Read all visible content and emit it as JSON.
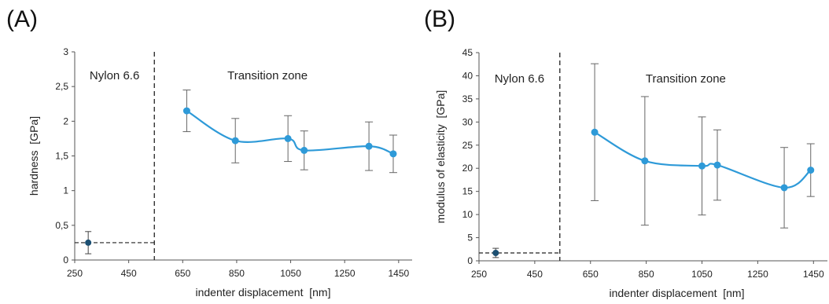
{
  "chart_data": [
    {
      "type": "scatter",
      "panel_label": "(A)",
      "xlabel": "indenter displacement  [nm]",
      "ylabel": "hardness  [GPa]",
      "xlim": [
        250,
        1500
      ],
      "ylim": [
        0,
        3
      ],
      "xticks": [
        250,
        450,
        650,
        850,
        1050,
        1250,
        1450
      ],
      "yticks": [
        0,
        0.5,
        1,
        1.5,
        2,
        2.5,
        3
      ],
      "ytick_labels": [
        "0",
        "0,5",
        "1",
        "1,5",
        "2",
        "2,5",
        "3"
      ],
      "divider_x": 545,
      "region_labels": [
        "Nylon 6.6",
        "Transition zone"
      ],
      "baseline": {
        "value": 0.25,
        "x_start": 250,
        "x_end": 545
      },
      "nylon_point": {
        "x": 300,
        "y": 0.25,
        "err": 0.16
      },
      "series": [
        {
          "x": [
            665,
            845,
            1040,
            1100,
            1340,
            1430
          ],
          "values": [
            2.15,
            1.72,
            1.75,
            1.58,
            1.64,
            1.53
          ],
          "err": [
            0.3,
            0.32,
            0.33,
            0.28,
            0.35,
            0.27
          ]
        }
      ],
      "line_color": "#2e9ad8",
      "nylon_color": "#1b4f72"
    },
    {
      "type": "scatter",
      "panel_label": "(B)",
      "xlabel": "indenter displacement  [nm]",
      "ylabel": "modulus of elasticity  [GPa]",
      "xlim": [
        250,
        1500
      ],
      "ylim": [
        0,
        45
      ],
      "xticks": [
        250,
        450,
        650,
        850,
        1050,
        1250,
        1450
      ],
      "yticks": [
        0,
        5,
        10,
        15,
        20,
        25,
        30,
        35,
        40,
        45
      ],
      "ytick_labels": [
        "0",
        "5",
        "10",
        "15",
        "20",
        "25",
        "30",
        "35",
        "40",
        "45"
      ],
      "divider_x": 540,
      "region_labels": [
        "Nylon 6.6",
        "Transition zone"
      ],
      "baseline": {
        "value": 1.7,
        "x_start": 250,
        "x_end": 540
      },
      "nylon_point": {
        "x": 310,
        "y": 1.7,
        "err": 1.0
      },
      "series": [
        {
          "x": [
            665,
            845,
            1050,
            1105,
            1345,
            1440
          ],
          "values": [
            27.8,
            21.6,
            20.5,
            20.7,
            15.8,
            19.6
          ],
          "err": [
            14.8,
            13.9,
            10.6,
            7.6,
            8.7,
            5.7
          ]
        }
      ],
      "line_color": "#2e9ad8",
      "nylon_color": "#1b4f72"
    }
  ]
}
